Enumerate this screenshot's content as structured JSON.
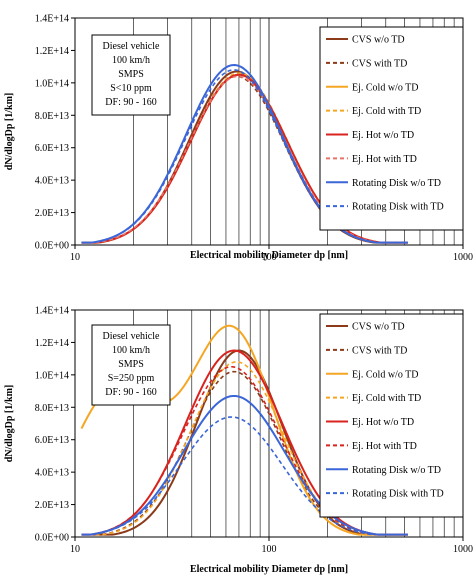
{
  "chart_data": [
    {
      "type": "line",
      "xscale": "log",
      "xlim": [
        10,
        1000
      ],
      "ylim": [
        0,
        140000000000000.0
      ],
      "xticks": [
        10,
        100,
        1000
      ],
      "xtick_labels": [
        "10",
        "100",
        "1000"
      ],
      "yticks": [
        0,
        20000000000000.0,
        40000000000000.0,
        60000000000000.0,
        80000000000000.0,
        100000000000000.0,
        120000000000000.0,
        140000000000000.0
      ],
      "ytick_labels": [
        "0.0E+00",
        "2.0E+13",
        "4.0E+13",
        "6.0E+13",
        "8.0E+13",
        "1.0E+14",
        "1.2E+14",
        "1.4E+14"
      ],
      "xlabel": "Electrical mobility Diameter dp [nm]",
      "ylabel": "dN/dlogDp [1/km]",
      "grid": "vertical",
      "legend_position": "right",
      "info_box": [
        "Diesel vehicle",
        "100 km/h",
        "SMPS",
        "S<10 ppm",
        "DF: 90 - 160"
      ],
      "series": [
        {
          "name": "CVS w/o TD",
          "color": "#8B3A1A",
          "dash": "solid",
          "peak_x": 68,
          "peak_y": 107000000000000.0,
          "sigma": 0.243
        },
        {
          "name": "CVS with TD",
          "color": "#8B3A1A",
          "dash": "dashed",
          "peak_x": 68,
          "peak_y": 104000000000000.0,
          "sigma": 0.245
        },
        {
          "name": "Ej. Cold w/o TD",
          "color": "#F5A623",
          "dash": "solid",
          "peak_x": 70,
          "peak_y": 105000000000000.0,
          "sigma": 0.25
        },
        {
          "name": "Ej. Cold with TD",
          "color": "#F5A623",
          "dash": "dashed",
          "peak_x": 70,
          "peak_y": 106000000000000.0,
          "sigma": 0.25
        },
        {
          "name": "Ej. Hot w/o TD",
          "color": "#D9231F",
          "dash": "solid",
          "peak_x": 70,
          "peak_y": 105000000000000.0,
          "sigma": 0.25
        },
        {
          "name": "Ej. Hot with TD",
          "color": "#E8736B",
          "dash": "dashed",
          "peak_x": 69,
          "peak_y": 104000000000000.0,
          "sigma": 0.25
        },
        {
          "name": "Rotating Disk w/o TD",
          "color": "#3A66D8",
          "dash": "solid",
          "peak_x": 66,
          "peak_y": 111000000000000.0,
          "sigma": 0.25
        },
        {
          "name": "Rotating Disk with TD",
          "color": "#3A66D8",
          "dash": "dashed",
          "peak_x": 66,
          "peak_y": 108000000000000.0,
          "sigma": 0.25
        }
      ]
    },
    {
      "type": "line",
      "xscale": "log",
      "xlim": [
        10,
        1000
      ],
      "ylim": [
        0,
        140000000000000.0
      ],
      "xticks": [
        10,
        100,
        1000
      ],
      "xtick_labels": [
        "10",
        "100",
        "1000"
      ],
      "yticks": [
        0,
        20000000000000.0,
        40000000000000.0,
        60000000000000.0,
        80000000000000.0,
        100000000000000.0,
        120000000000000.0,
        140000000000000.0
      ],
      "ytick_labels": [
        "0.0E+00",
        "2.0E+13",
        "4.0E+13",
        "6.0E+13",
        "8.0E+13",
        "1.0E+14",
        "1.2E+14",
        "1.4E+14"
      ],
      "xlabel": "Electrical mobility Diameter dp [nm]",
      "ylabel": "dN/dlogDp [1/km]",
      "grid": "vertical",
      "legend_position": "right",
      "info_box": [
        "Diesel vehicle",
        "100 km/h",
        "SMPS",
        "S=250 ppm",
        "DF: 90 - 160"
      ],
      "series": [
        {
          "name": "CVS w/o TD",
          "color": "#8B3A1A",
          "dash": "solid",
          "peak_x": 70,
          "peak_y": 115000000000000.0,
          "sigma": 0.22
        },
        {
          "name": "CVS with TD",
          "color": "#8B3A1A",
          "dash": "dashed",
          "peak_x": 66,
          "peak_y": 102000000000000.0,
          "sigma": 0.235
        },
        {
          "name": "Ej. Cold w/o TD",
          "color": "#F5A623",
          "dash": "solid",
          "peak_x": 64,
          "peak_y": 128000000000000.0,
          "sigma": 0.22,
          "nucleation_mode_y": 90000000000000.0,
          "nucleation_mode_x": 16
        },
        {
          "name": "Ej. Cold with TD",
          "color": "#F5A623",
          "dash": "dashed",
          "peak_x": 68,
          "peak_y": 108000000000000.0,
          "sigma": 0.235
        },
        {
          "name": "Ej. Hot w/o TD",
          "color": "#D9231F",
          "dash": "solid",
          "peak_x": 66,
          "peak_y": 115000000000000.0,
          "sigma": 0.25
        },
        {
          "name": "Ej. Hot with TD",
          "color": "#D9231F",
          "dash": "dashed",
          "peak_x": 64,
          "peak_y": 105000000000000.0,
          "sigma": 0.25
        },
        {
          "name": "Rotating Disk w/o TD",
          "color": "#3A66D8",
          "dash": "solid",
          "peak_x": 66,
          "peak_y": 87000000000000.0,
          "sigma": 0.26
        },
        {
          "name": "Rotating Disk with TD",
          "color": "#3A66D8",
          "dash": "dashed",
          "peak_x": 64,
          "peak_y": 74000000000000.0,
          "sigma": 0.26
        }
      ]
    }
  ]
}
